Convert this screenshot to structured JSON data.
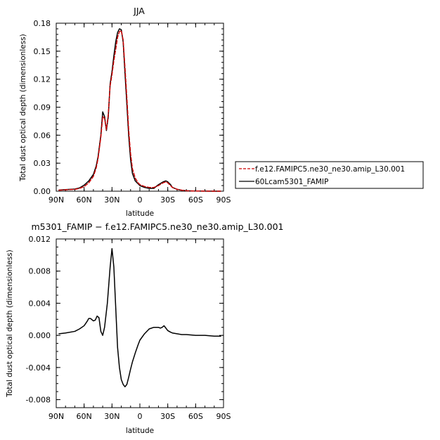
{
  "chart_data": [
    {
      "type": "line",
      "title": "JJA",
      "xlabel": "latitude",
      "ylabel": "Total dust optical depth (dimensionless)",
      "xlim": [
        90,
        -90
      ],
      "ylim": [
        0,
        0.18
      ],
      "xtick_values": [
        90,
        60,
        30,
        0,
        -30,
        -60,
        -90
      ],
      "xticks": [
        "90N",
        "60N",
        "30N",
        "0",
        "30S",
        "60S",
        "90S"
      ],
      "ytick_values": [
        0,
        0.03,
        0.06,
        0.09,
        0.12,
        0.15,
        0.18
      ],
      "yticks": [
        "0.00",
        "0.03",
        "0.06",
        "0.09",
        "0.12",
        "0.15",
        "0.18"
      ],
      "legend_position": "right",
      "series": [
        {
          "name": "f.e12.FAMIPC5.ne30_ne30.amip_L30.001",
          "color": "#cc0000",
          "dash": true,
          "x": [
            87,
            80,
            70,
            65,
            60,
            55,
            50,
            47,
            45,
            42,
            40,
            38,
            36,
            34,
            32,
            30,
            28,
            26,
            24,
            22,
            20,
            18,
            16,
            14,
            12,
            10,
            8,
            5,
            2,
            0,
            -5,
            -10,
            -15,
            -20,
            -25,
            -28,
            -30,
            -33,
            -35,
            -40,
            -45,
            -50,
            -55,
            -60,
            -70,
            -80,
            -87
          ],
          "y": [
            0.001,
            0.0015,
            0.002,
            0.003,
            0.005,
            0.009,
            0.016,
            0.025,
            0.035,
            0.058,
            0.08,
            0.078,
            0.066,
            0.082,
            0.113,
            0.125,
            0.14,
            0.152,
            0.165,
            0.171,
            0.172,
            0.162,
            0.132,
            0.1,
            0.065,
            0.04,
            0.024,
            0.014,
            0.009,
            0.007,
            0.005,
            0.004,
            0.004,
            0.006,
            0.009,
            0.01,
            0.009,
            0.006,
            0.004,
            0.002,
            0.001,
            0.0005,
            0.0003,
            0.0002,
            0.0001,
            0.0,
            0.0
          ]
        },
        {
          "name": "60Lcam5301_FAMIP",
          "color": "#000000",
          "dash": false,
          "x": [
            87,
            80,
            70,
            65,
            60,
            55,
            50,
            47,
            45,
            42,
            40,
            38,
            36,
            34,
            32,
            30,
            28,
            26,
            24,
            22,
            20,
            18,
            16,
            14,
            12,
            10,
            8,
            5,
            2,
            0,
            -5,
            -10,
            -15,
            -20,
            -25,
            -28,
            -30,
            -33,
            -35,
            -40,
            -45,
            -50,
            -55,
            -60,
            -70,
            -80,
            -87
          ],
          "y": [
            0.0012,
            0.0017,
            0.0023,
            0.0035,
            0.0065,
            0.011,
            0.018,
            0.027,
            0.037,
            0.06,
            0.085,
            0.08,
            0.065,
            0.08,
            0.115,
            0.128,
            0.145,
            0.16,
            0.17,
            0.174,
            0.173,
            0.16,
            0.126,
            0.093,
            0.059,
            0.034,
            0.019,
            0.011,
            0.008,
            0.006,
            0.004,
            0.003,
            0.003,
            0.007,
            0.01,
            0.011,
            0.01,
            0.007,
            0.004,
            0.002,
            0.001,
            0.0005,
            0.0003,
            0.0002,
            0.0001,
            0.0,
            0.0
          ]
        }
      ]
    },
    {
      "type": "line",
      "title": "m5301_FAMIP − f.e12.FAMIPC5.ne30_ne30.amip_L30.001",
      "xlabel": "latitude",
      "ylabel": "Total dust optical depth (dimensionless)",
      "xlim": [
        90,
        -90
      ],
      "ylim": [
        -0.009,
        0.012
      ],
      "xtick_values": [
        90,
        60,
        30,
        0,
        -30,
        -60,
        -90
      ],
      "xticks": [
        "90N",
        "60N",
        "30N",
        "0",
        "30S",
        "60S",
        "90S"
      ],
      "ytick_values": [
        -0.008,
        -0.004,
        0.0,
        0.004,
        0.008,
        0.012
      ],
      "yticks": [
        "-0.008",
        "-0.004",
        "0.000",
        "0.004",
        "0.008",
        "0.012"
      ],
      "series": [
        {
          "color": "#000000",
          "x": [
            87,
            80,
            70,
            65,
            60,
            57,
            55,
            53,
            50,
            48,
            46,
            44,
            42,
            40,
            38,
            35,
            32,
            30,
            28,
            26,
            24,
            22,
            20,
            18,
            16,
            14,
            12,
            10,
            8,
            5,
            2,
            0,
            -5,
            -10,
            -15,
            -20,
            -22,
            -24,
            -26,
            -28,
            -30,
            -33,
            -35,
            -40,
            -45,
            -50,
            -60,
            -70,
            -80,
            -87
          ],
          "y": [
            0.0002,
            0.0003,
            0.0005,
            0.0008,
            0.0012,
            0.0017,
            0.0021,
            0.0021,
            0.0018,
            0.0019,
            0.0024,
            0.0022,
            0.0005,
            0.0,
            0.001,
            0.004,
            0.0085,
            0.0108,
            0.0085,
            0.0035,
            -0.0015,
            -0.004,
            -0.0055,
            -0.0061,
            -0.0064,
            -0.0061,
            -0.0052,
            -0.0042,
            -0.0033,
            -0.0022,
            -0.0012,
            -0.0006,
            0.0002,
            0.0008,
            0.001,
            0.001,
            0.0009,
            0.001,
            0.0012,
            0.0009,
            0.0006,
            0.0004,
            0.0003,
            0.0002,
            0.0001,
            0.0001,
            0.0,
            0.0,
            -0.0001,
            -0.0001
          ]
        }
      ]
    }
  ]
}
